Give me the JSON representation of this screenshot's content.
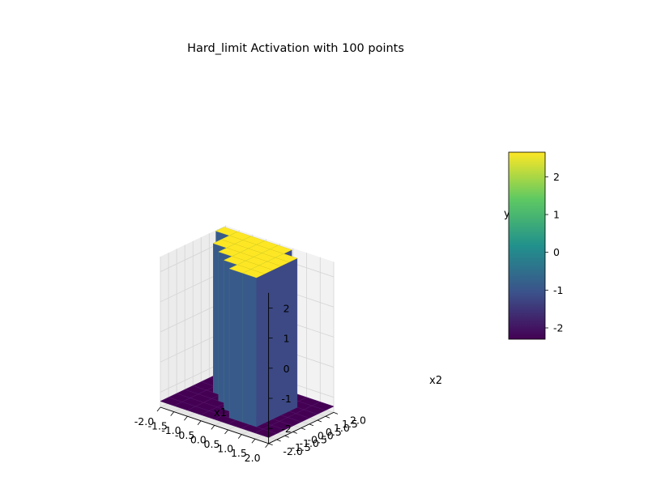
{
  "chart_data": {
    "type": "surface3d",
    "title": "Hard_limit Activation with 100 points",
    "xlabel": "x1",
    "ylabel": "x2",
    "zlabel": "y",
    "xlim": [
      -2.0,
      2.0
    ],
    "ylim": [
      -2.0,
      2.0
    ],
    "zlim": [
      -2.5,
      2.5
    ],
    "x_ticks": [
      "-2.0",
      "-1.5",
      "-1.0",
      "-0.5",
      "0.0",
      "0.5",
      "1.0",
      "1.5",
      "2.0"
    ],
    "y_ticks": [
      "-2.0",
      "-1.5",
      "-1.0",
      "-0.5",
      "0.0",
      "0.5",
      "1.0",
      "1.5",
      "2.0"
    ],
    "z_ticks": [
      "-2",
      "-1",
      "0",
      "1",
      "2"
    ],
    "grid": true,
    "colormap": "viridis",
    "colormap_stops": [
      "#440154",
      "#3b528b",
      "#21918c",
      "#5ec962",
      "#fde725"
    ],
    "colorbar": {
      "range": [
        -2.3,
        2.65
      ],
      "ticks": [
        "-2",
        "-1",
        "0",
        "1",
        "2"
      ]
    },
    "points": 100,
    "surface_levels": {
      "low": -2.3,
      "high": 2.65
    },
    "series": [
      {
        "x1": -1.5,
        "x2_start": 1.0,
        "x2_end": 1.5,
        "value": 2.65
      },
      {
        "x1": -1.0,
        "x2_start": 0.0,
        "x2_end": 1.5,
        "value": 2.65
      },
      {
        "x1": -0.5,
        "x2_start": -0.5,
        "x2_end": 1.5,
        "value": 2.65
      },
      {
        "x1": 0.0,
        "x2_start": -1.0,
        "x2_end": 1.5,
        "value": 2.65
      },
      {
        "x1": 0.5,
        "x2_start": -1.5,
        "x2_end": 1.5,
        "value": 2.65
      },
      {
        "x1": 1.0,
        "x2_start": -1.5,
        "x2_end": 1.0,
        "value": 2.65
      }
    ]
  }
}
